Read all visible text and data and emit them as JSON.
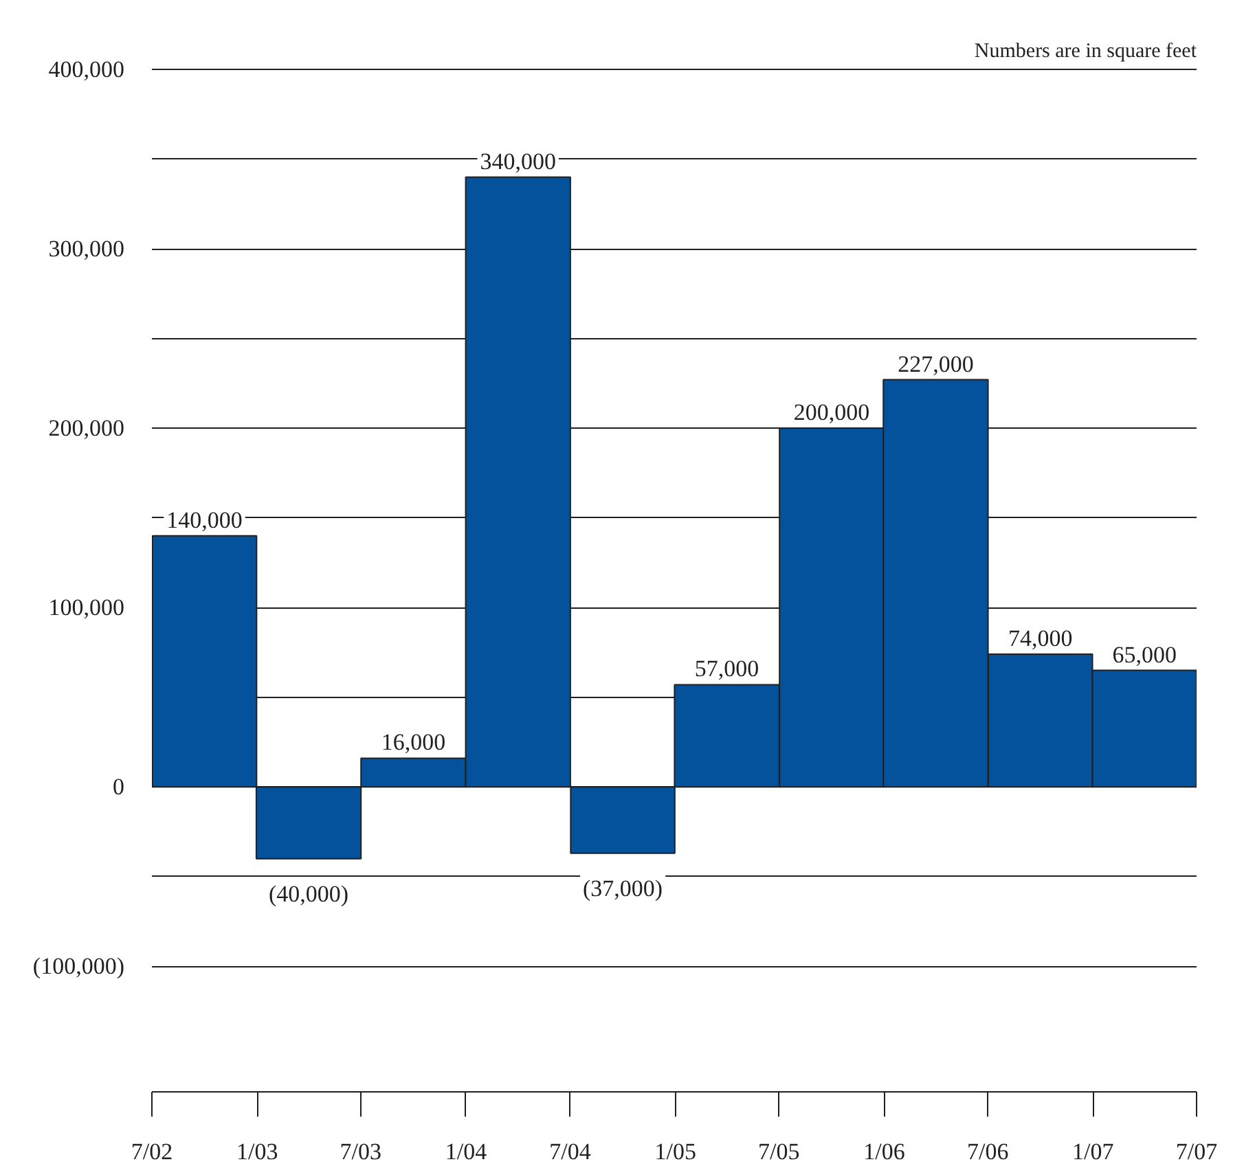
{
  "chart_data": {
    "type": "bar",
    "annotations": [
      "Numbers are in square feet"
    ],
    "x": [
      "2002-10",
      "2003-04",
      "2003-10",
      "2004-04",
      "2004-10",
      "2005-04",
      "2005-10",
      "2006-04",
      "2006-10",
      "2007-04"
    ],
    "values": [
      140000,
      -40000,
      16000,
      340000,
      -37000,
      57000,
      200000,
      227000,
      74000,
      65000
    ],
    "value_labels": [
      "140,000",
      "(40,000)",
      "16,000",
      "340,000",
      "(37,000)",
      "57,000",
      "200,000",
      "227,000",
      "74,000",
      "65,000"
    ],
    "color": "#03529b",
    "xlim": [
      "2002-07",
      "2007-07"
    ],
    "xticks": [
      {
        "value": "2002-07",
        "label": "7/02"
      },
      {
        "value": "2003-01",
        "label": "1/03"
      },
      {
        "value": "2003-07",
        "label": "7/03"
      },
      {
        "value": "2004-01",
        "label": "1/04"
      },
      {
        "value": "2004-07",
        "label": "7/04"
      },
      {
        "value": "2005-01",
        "label": "1/05"
      },
      {
        "value": "2005-07",
        "label": "7/05"
      },
      {
        "value": "2006-01",
        "label": "1/06"
      },
      {
        "value": "2006-07",
        "label": "7/06"
      },
      {
        "value": "2007-01",
        "label": "1/07"
      },
      {
        "value": "2007-07",
        "label": "7/07"
      }
    ],
    "ylim": [
      -170000,
      400000
    ],
    "yticks": [
      {
        "value": -100000,
        "label": "(100,000)"
      },
      {
        "value": -50000,
        "label": null
      },
      {
        "value": 0,
        "label": "0"
      },
      {
        "value": 50000,
        "label": null
      },
      {
        "value": 100000,
        "label": "100,000"
      },
      {
        "value": 150000,
        "label": null
      },
      {
        "value": 200000,
        "label": "200,000"
      },
      {
        "value": 250000,
        "label": null
      },
      {
        "value": 300000,
        "label": "300,000"
      },
      {
        "value": 350000,
        "label": null
      },
      {
        "value": 400000,
        "label": "400,000"
      }
    ],
    "grid": "y"
  }
}
